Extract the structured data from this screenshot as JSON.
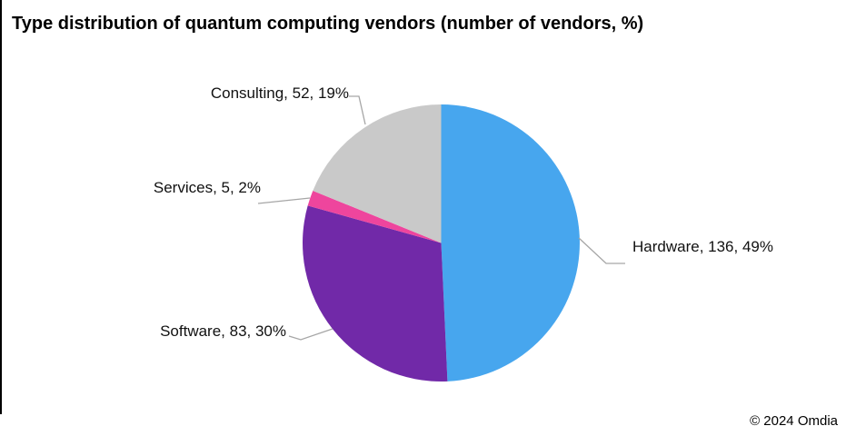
{
  "title": "Type distribution of quantum computing vendors (number of vendors, %)",
  "copyright": "© 2024 Omdia",
  "chart_data": {
    "type": "pie",
    "title": "Type distribution of quantum computing vendors (number of vendors, %)",
    "value_unit": "number of vendors",
    "total": 276,
    "start_angle_deg": 0,
    "direction": "clockwise",
    "legend": "none",
    "leader_line_color": "#a6a6a6",
    "slices": [
      {
        "name": "Hardware",
        "value": 136,
        "pct": 49,
        "color": "#47a6ee",
        "label": "Hardware, 136, 49%"
      },
      {
        "name": "Software",
        "value": 83,
        "pct": 30,
        "color": "#7129a8",
        "label": "Software, 83, 30%"
      },
      {
        "name": "Services",
        "value": 5,
        "pct": 2,
        "color": "#ee459d",
        "label": "Services, 5, 2%"
      },
      {
        "name": "Consulting",
        "value": 52,
        "pct": 19,
        "color": "#c9c9c9",
        "label": "Consulting, 52, 19%"
      }
    ]
  }
}
